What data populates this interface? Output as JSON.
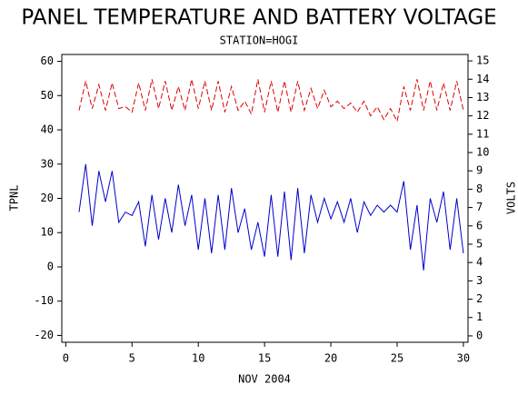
{
  "chart_data": {
    "type": "line",
    "title": "PANEL TEMPERATURE AND BATTERY VOLTAGE",
    "subtitle": "STATION=HOGI",
    "x_label": "NOV 2004",
    "y_label": "TPNL",
    "y2_label": "VOLTS",
    "x": [
      1,
      1.5,
      2,
      2.5,
      3,
      3.5,
      4,
      4.5,
      5,
      5.5,
      6,
      6.5,
      7,
      7.5,
      8,
      8.5,
      9,
      9.5,
      10,
      10.5,
      11,
      11.5,
      12,
      12.5,
      13,
      13.5,
      14,
      14.5,
      15,
      15.5,
      16,
      16.5,
      17,
      17.5,
      18,
      18.5,
      19,
      19.5,
      20,
      20.5,
      21,
      21.5,
      22,
      22.5,
      23,
      23.5,
      24,
      24.5,
      25,
      25.5,
      26,
      26.5,
      27,
      27.5,
      28,
      28.5,
      29,
      29.5,
      30
    ],
    "series": [
      {
        "color": "#0000cc",
        "dash": false,
        "axis": "y",
        "values": [
          16,
          30,
          12,
          28,
          19,
          28,
          13,
          16,
          15,
          19,
          6,
          21,
          8,
          20,
          10,
          24,
          12,
          21,
          5,
          20,
          4,
          21,
          5,
          23,
          10,
          17,
          5,
          13,
          3,
          21,
          3,
          22,
          2,
          23,
          4,
          21,
          13,
          20,
          14,
          19,
          13,
          20,
          10,
          19,
          15,
          18,
          16,
          18,
          16,
          25,
          5,
          18,
          -1,
          20,
          13,
          22,
          5,
          20,
          4
        ]
      },
      {
        "color": "#dd0000",
        "dash": true,
        "axis": "y2",
        "values": [
          12.3,
          13.9,
          12.4,
          13.7,
          12.3,
          13.8,
          12.4,
          12.5,
          12.2,
          13.8,
          12.3,
          14.0,
          12.4,
          13.9,
          12.3,
          13.6,
          12.3,
          14.0,
          12.4,
          13.9,
          12.3,
          13.9,
          12.2,
          13.6,
          12.3,
          12.8,
          12.1,
          14.0,
          12.2,
          13.9,
          12.2,
          13.9,
          12.2,
          13.9,
          12.3,
          13.5,
          12.4,
          13.4,
          12.5,
          12.8,
          12.4,
          12.7,
          12.2,
          12.8,
          12.0,
          12.5,
          11.8,
          12.4,
          11.7,
          13.6,
          12.3,
          14.0,
          12.3,
          13.9,
          12.3,
          13.8,
          12.3,
          13.9,
          12.3
        ]
      }
    ],
    "xlim": [
      -0.3,
      30.35
    ],
    "xticks": [
      0,
      5,
      10,
      15,
      20,
      25,
      30
    ],
    "ylim": [
      -22,
      62
    ],
    "yticks": [
      -20,
      -10,
      0,
      10,
      20,
      30,
      40,
      50,
      60
    ],
    "y2lim": [
      -0.35,
      15.35
    ],
    "y2ticks": [
      0,
      1,
      2,
      3,
      4,
      5,
      6,
      7,
      8,
      9,
      10,
      11,
      12,
      13,
      14,
      15
    ]
  }
}
